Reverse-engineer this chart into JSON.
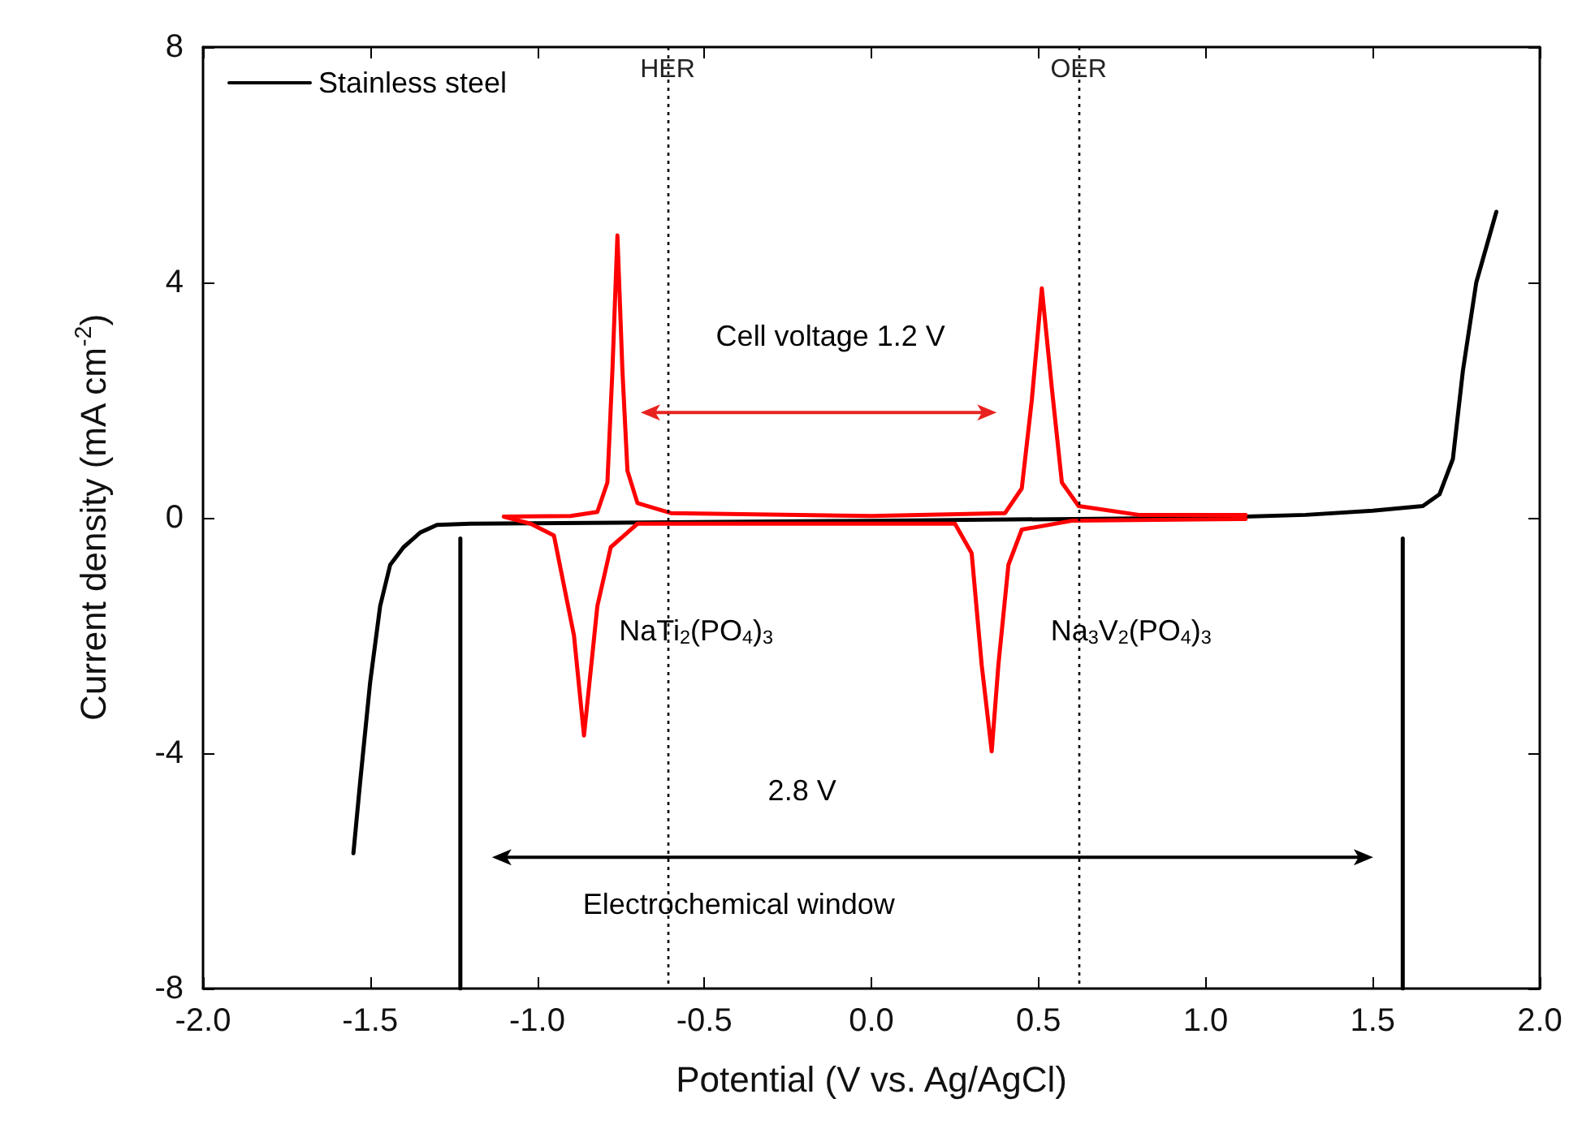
{
  "chart_data": {
    "type": "line",
    "xlabel": "Potential (V vs. Ag/AgCl)",
    "ylabel": "Current density (mA cm$^{-2}$)",
    "xlim": [
      -2,
      2
    ],
    "ylim": [
      -8,
      8
    ],
    "xticks": [
      {
        "value": -2,
        "label": "-2.0"
      },
      {
        "value": -1.5,
        "label": "-1.5"
      },
      {
        "value": -1,
        "label": "-1.0"
      },
      {
        "value": -0.5,
        "label": "-0.5"
      },
      {
        "value": 0,
        "label": "0.0"
      },
      {
        "value": 0.5,
        "label": "0.5"
      },
      {
        "value": 1,
        "label": "1.0"
      },
      {
        "value": 1.5,
        "label": "1.5"
      },
      {
        "value": 2,
        "label": "2.0"
      }
    ],
    "yticks": [
      -8,
      -4,
      0,
      4,
      8
    ],
    "legend": "top left",
    "grid": false,
    "marker": "none",
    "line_style": "solid",
    "series": [
      {
        "name": "Stainless steel",
        "color": "#000000",
        "x": [
          -1.55,
          -1.53,
          -1.5,
          -1.47,
          -1.44,
          -1.4,
          -1.35,
          -1.3,
          -1.2,
          0,
          1.0,
          1.3,
          1.5,
          1.65,
          1.7,
          1.74,
          1.77,
          1.81,
          1.87
        ],
        "values": [
          -5.7,
          -4.5,
          -2.8,
          -1.5,
          -0.8,
          -0.5,
          -0.25,
          -0.12,
          -0.1,
          -0.05,
          0.0,
          0.05,
          0.12,
          0.2,
          0.4,
          1,
          2.5,
          4,
          5.2
        ]
      },
      {
        "color": "#ff0000",
        "x": [
          -1.1,
          -0.9,
          -0.82,
          -0.79,
          -0.775,
          -0.76,
          -0.745,
          -0.73,
          -0.7,
          -0.6,
          0,
          0.4,
          0.45,
          0.48,
          0.51,
          0.54,
          0.57,
          0.62,
          0.8,
          1.12
        ],
        "values": [
          0.02,
          0.03,
          0.1,
          0.6,
          2.5,
          4.8,
          2.5,
          0.8,
          0.25,
          0.08,
          0.03,
          0.08,
          0.5,
          2,
          3.9,
          2.2,
          0.6,
          0.2,
          0.05,
          0.05
        ]
      },
      {
        "color": "#ff0000",
        "x": [
          -1.1,
          -1.02,
          -0.95,
          -0.89,
          -0.86,
          -0.82,
          -0.78,
          -0.7,
          0.25,
          0.3,
          0.33,
          0.36,
          0.38,
          0.41,
          0.45,
          0.6,
          1.12
        ],
        "values": [
          0.02,
          -0.1,
          -0.3,
          -2,
          -3.7,
          -1.5,
          -0.5,
          -0.1,
          -0.1,
          -0.6,
          -2.5,
          -3.97,
          -2.5,
          -0.8,
          -0.2,
          -0.05,
          -0.02
        ]
      },
      {
        "color": "#000000",
        "x": [
          -1.23,
          -1.23
        ],
        "values": [
          -8,
          -0.35
        ]
      },
      {
        "color": "#000000",
        "x": [
          1.59,
          1.59
        ],
        "values": [
          -8,
          -0.35
        ]
      }
    ],
    "ref_lines": [
      {
        "axis": "x",
        "value": -0.61,
        "label": "HER",
        "color": "#000000",
        "line_style": "dotted"
      },
      {
        "axis": "x",
        "value": 0.62,
        "label": "OER",
        "color": "#000000",
        "line_style": "dotted"
      }
    ],
    "annotations": [
      "Cell voltage 1.2 V",
      "NaTi$_{2}$(PO$_{4}$)$_{3}$",
      "Na$_{3}$V$_{2}$(PO$_{4}$)$_{3}$",
      "2.8 V",
      "Electrochemical window"
    ]
  }
}
